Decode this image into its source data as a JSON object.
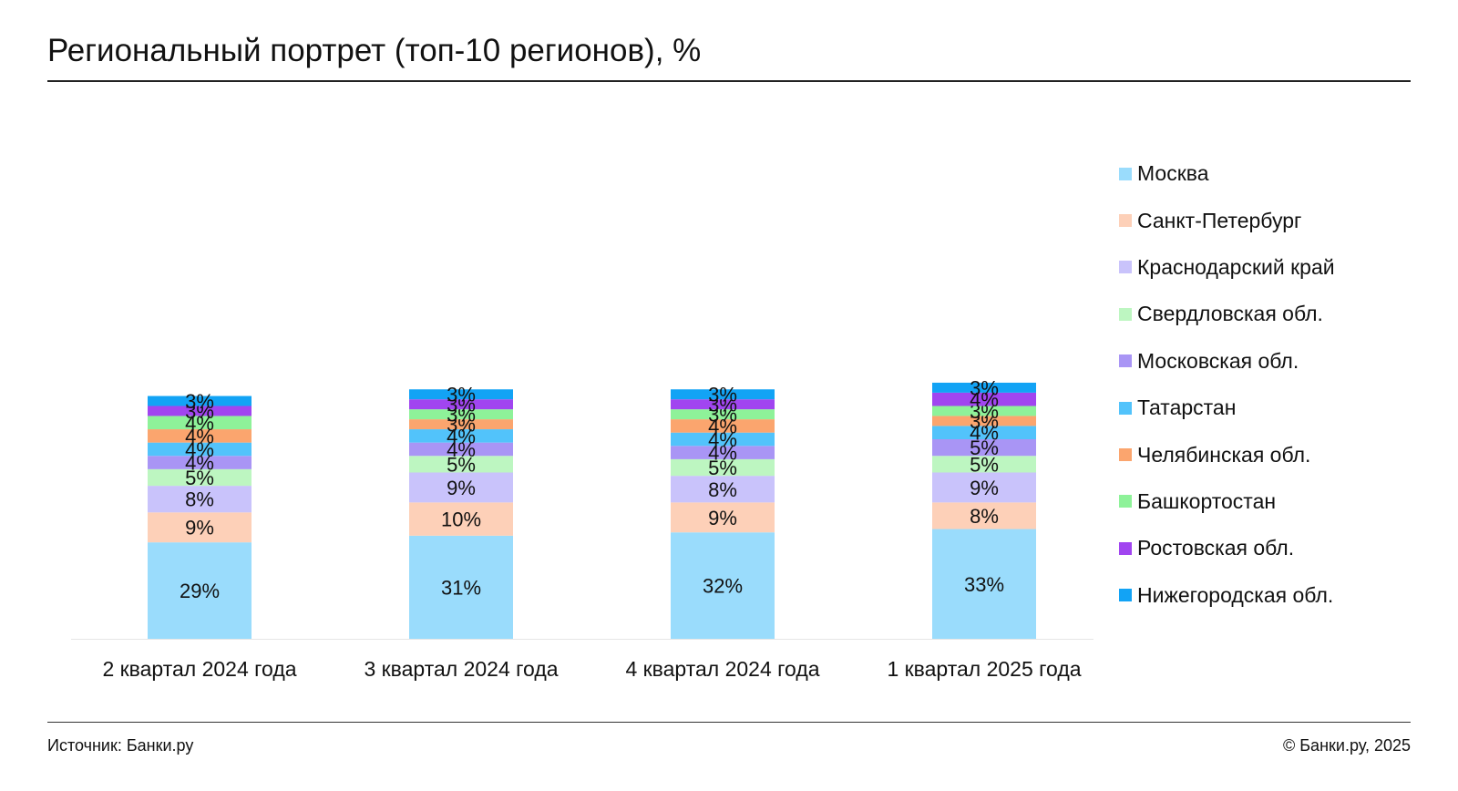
{
  "header": {
    "title": "Региональный портрет (топ-10 регионов), %"
  },
  "footer": {
    "source": "Источник: Банки.ру",
    "copyright": "© Банки.ру, 2025"
  },
  "chart_data": {
    "type": "bar",
    "stacked": true,
    "title": "Региональный портрет (топ-10 регионов), %",
    "xlabel": "",
    "ylabel": "",
    "unit": "%",
    "grid": false,
    "legend_position": "right",
    "categories": [
      "2 квартал 2024 года",
      "3 квартал 2024 года",
      "4 квартал 2024 года",
      "1 квартал 2025 года"
    ],
    "series": [
      {
        "name": "Москва",
        "color": "#9adcfc",
        "values": [
          29,
          31,
          32,
          33
        ]
      },
      {
        "name": "Санкт-Петербург",
        "color": "#fdd0b8",
        "values": [
          9,
          10,
          9,
          8
        ]
      },
      {
        "name": "Краснодарский край",
        "color": "#c9c3fb",
        "values": [
          8,
          9,
          8,
          9
        ]
      },
      {
        "name": "Свердловская обл.",
        "color": "#bdf6c1",
        "values": [
          5,
          5,
          5,
          5
        ]
      },
      {
        "name": "Московская обл.",
        "color": "#a995f5",
        "values": [
          4,
          4,
          4,
          5
        ]
      },
      {
        "name": "Татарстан",
        "color": "#52c3fb",
        "values": [
          4,
          4,
          4,
          4
        ]
      },
      {
        "name": "Челябинская обл.",
        "color": "#fba56e",
        "values": [
          4,
          3,
          4,
          3
        ]
      },
      {
        "name": "Башкортостан",
        "color": "#8ef299",
        "values": [
          4,
          3,
          3,
          3
        ]
      },
      {
        "name": "Ростовская обл.",
        "color": "#a145f0",
        "values": [
          3,
          3,
          3,
          4
        ]
      },
      {
        "name": "Нижегородская обл.",
        "color": "#12a3f5",
        "values": [
          3,
          3,
          3,
          3
        ]
      }
    ]
  }
}
